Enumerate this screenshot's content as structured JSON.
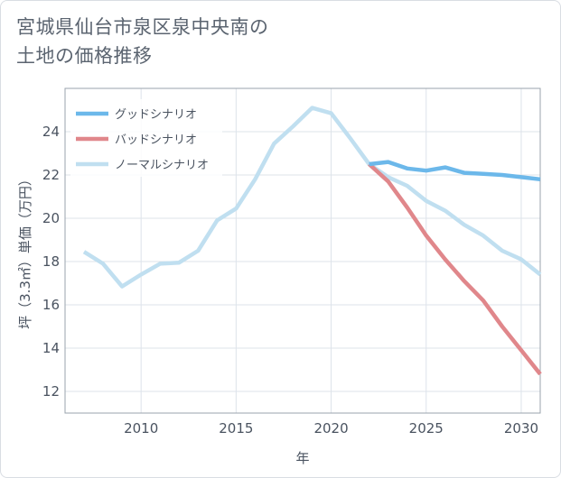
{
  "title_lines": [
    "宮城県仙台市泉区泉中央南の",
    "土地の価格推移"
  ],
  "chart_data": {
    "type": "line",
    "xlabel": "年",
    "ylabel": "坪（3.3㎡）単価（万円）",
    "xlim": [
      2006,
      2031
    ],
    "ylim": [
      11,
      26
    ],
    "xticks": [
      2010,
      2015,
      2020,
      2025,
      2030
    ],
    "yticks": [
      12,
      14,
      16,
      18,
      20,
      22,
      24
    ],
    "grid": true,
    "legend_position": "top-left",
    "series": [
      {
        "name": "グッドシナリオ",
        "color": "#6cb8ea",
        "x": [
          2022,
          2023,
          2024,
          2025,
          2026,
          2027,
          2028,
          2029,
          2030,
          2031
        ],
        "values": [
          22.5,
          22.6,
          22.3,
          22.2,
          22.35,
          22.1,
          22.05,
          22.0,
          21.9,
          21.8
        ]
      },
      {
        "name": "バッドシナリオ",
        "color": "#e0878b",
        "x": [
          2022,
          2023,
          2024,
          2025,
          2026,
          2027,
          2028,
          2029,
          2030,
          2031
        ],
        "values": [
          22.5,
          21.7,
          20.5,
          19.2,
          18.1,
          17.1,
          16.2,
          15.0,
          13.9,
          12.8
        ]
      },
      {
        "name": "ノーマルシナリオ",
        "color": "#c0dff0",
        "x": [
          2007,
          2008,
          2009,
          2010,
          2011,
          2012,
          2013,
          2014,
          2015,
          2016,
          2017,
          2018,
          2019,
          2020,
          2021,
          2022,
          2023,
          2024,
          2025,
          2026,
          2027,
          2028,
          2029,
          2030,
          2031
        ],
        "values": [
          18.45,
          17.9,
          16.85,
          17.4,
          17.9,
          17.95,
          18.5,
          19.9,
          20.45,
          21.8,
          23.45,
          24.25,
          25.1,
          24.85,
          23.7,
          22.5,
          21.9,
          21.5,
          20.8,
          20.35,
          19.7,
          19.2,
          18.5,
          18.1,
          17.4
        ]
      }
    ]
  }
}
